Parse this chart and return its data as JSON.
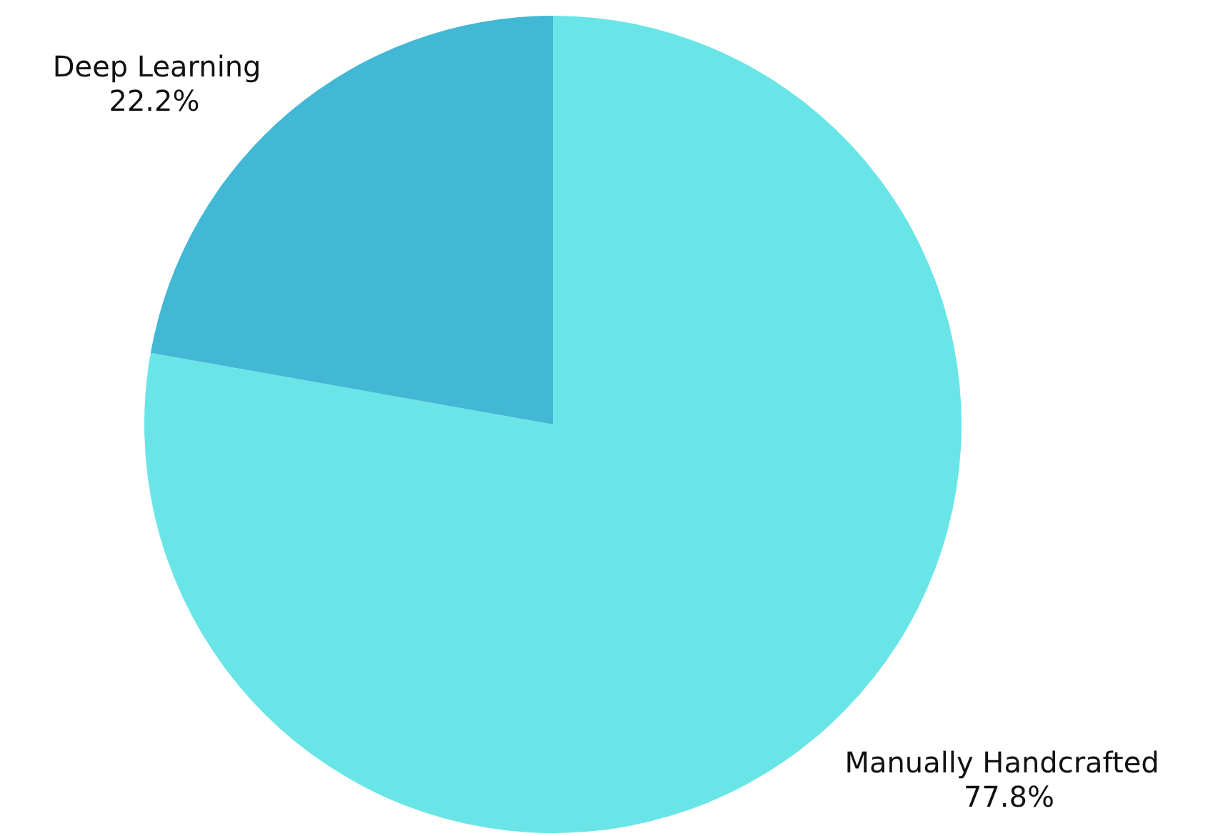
{
  "chart_data": {
    "type": "pie",
    "categories": [
      "Manually Handcrafted",
      "Deep Learning"
    ],
    "values": [
      77.8,
      22.2
    ],
    "colors": [
      "#69e5e8",
      "#42b8d5"
    ],
    "value_labels": [
      "77.8%",
      "22.2%"
    ],
    "legend": false
  }
}
